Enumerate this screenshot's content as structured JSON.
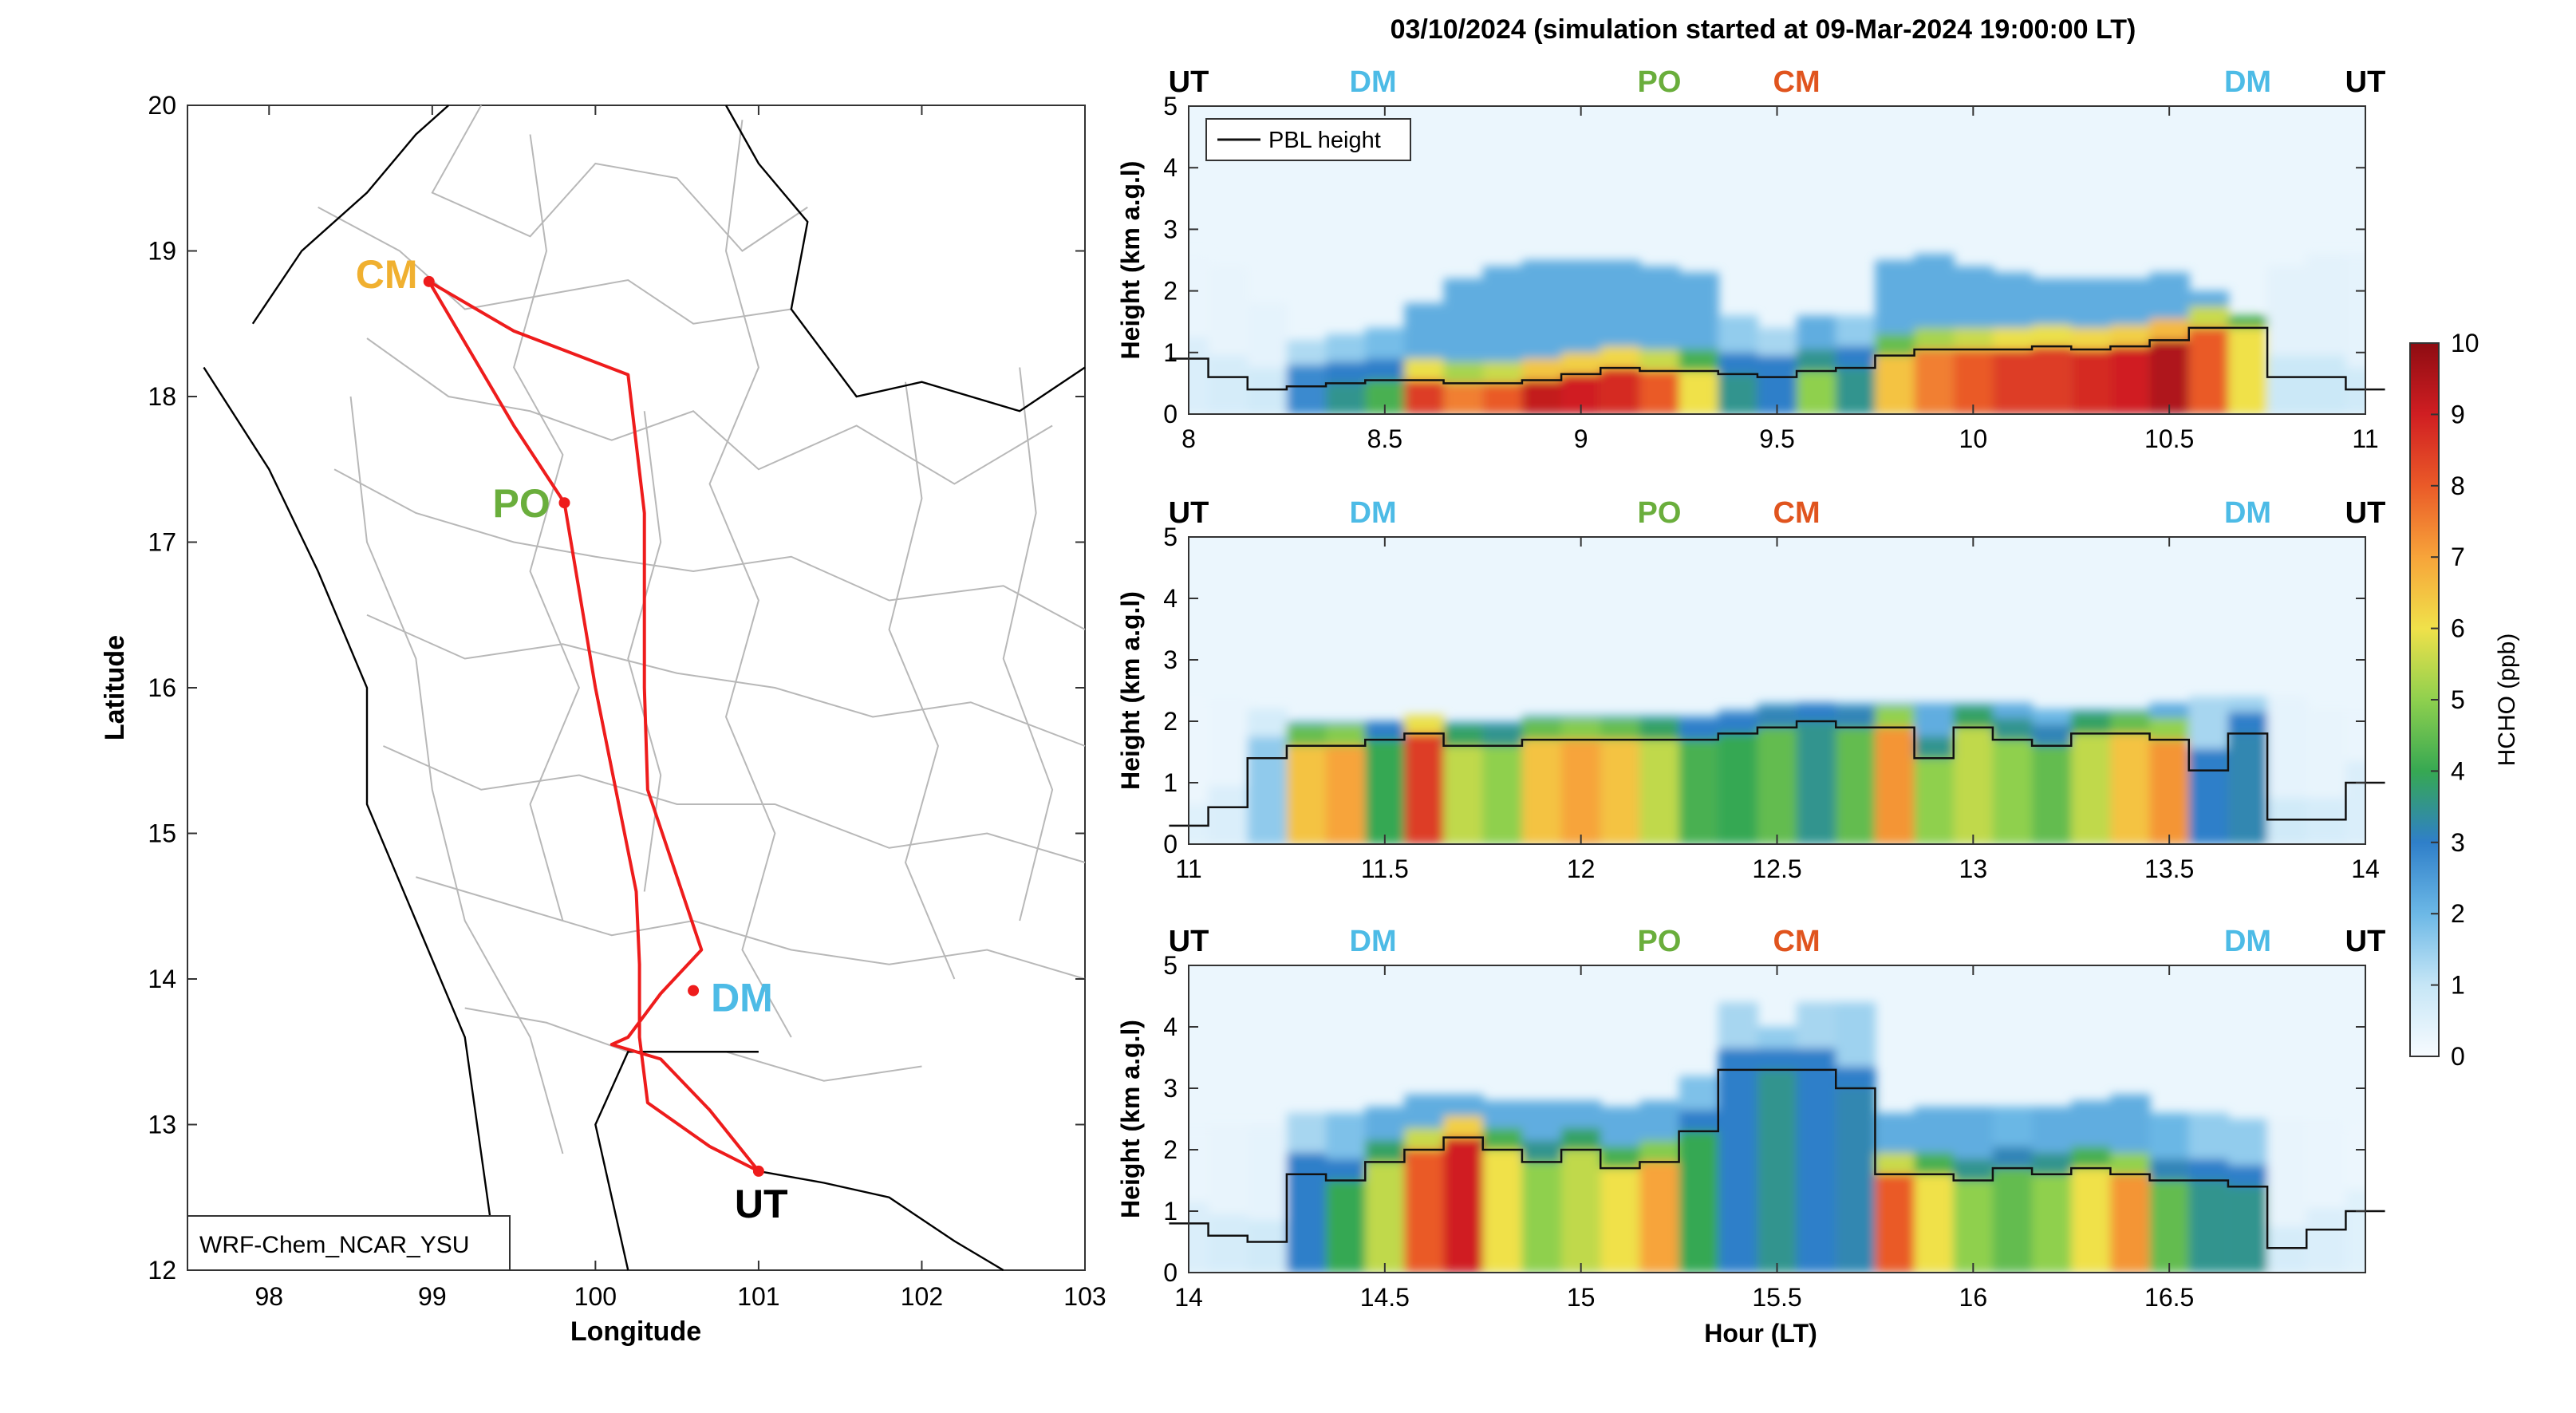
{
  "title": "03/10/2024 (simulation started at 09-Mar-2024 19:00:00 LT)",
  "map": {
    "xlabel": "Longitude",
    "ylabel": "Latitude",
    "xticks": [
      98,
      99,
      100,
      101,
      102,
      103
    ],
    "yticks": [
      12,
      13,
      14,
      15,
      16,
      17,
      18,
      19,
      20
    ],
    "xlim": [
      97.5,
      103
    ],
    "ylim": [
      12,
      20
    ],
    "model_label": "WRF-Chem_NCAR_YSU",
    "sites": [
      {
        "name": "CM",
        "lon": 98.98,
        "lat": 18.79,
        "color": "#F0B030"
      },
      {
        "name": "PO",
        "lon": 99.81,
        "lat": 17.27,
        "color": "#6AAE3C"
      },
      {
        "name": "DM",
        "lon": 100.6,
        "lat": 13.92,
        "color": "#4DBBE6"
      },
      {
        "name": "UT",
        "lon": 101.0,
        "lat": 12.68,
        "color": "#000000"
      }
    ],
    "flight_track": [
      [
        101.0,
        12.68
      ],
      [
        100.7,
        12.85
      ],
      [
        100.32,
        13.15
      ],
      [
        100.27,
        13.6
      ],
      [
        100.27,
        14.1
      ],
      [
        100.25,
        14.6
      ],
      [
        100.0,
        16.0
      ],
      [
        99.81,
        17.27
      ],
      [
        99.5,
        17.8
      ],
      [
        98.98,
        18.79
      ],
      [
        99.5,
        18.45
      ],
      [
        100.2,
        18.15
      ],
      [
        100.3,
        17.2
      ],
      [
        100.3,
        16.0
      ],
      [
        100.32,
        15.3
      ],
      [
        100.65,
        14.2
      ],
      [
        100.4,
        13.9
      ],
      [
        100.2,
        13.6
      ],
      [
        100.1,
        13.55
      ],
      [
        100.4,
        13.45
      ],
      [
        100.7,
        13.1
      ],
      [
        101.0,
        12.68
      ]
    ]
  },
  "colorbar": {
    "label": "HCHO (ppb)",
    "ticks": [
      0,
      1,
      2,
      3,
      4,
      5,
      6,
      7,
      8,
      9,
      10
    ]
  },
  "panel_common": {
    "ylabel": "Height (km a.g.l)",
    "yticks": [
      0,
      1,
      2,
      3,
      4,
      5
    ],
    "ylim": [
      0,
      5
    ],
    "legend": "PBL height",
    "site_labels": [
      {
        "name": "UT",
        "color": "#000000"
      },
      {
        "name": "DM",
        "color": "#4DBBE6"
      },
      {
        "name": "PO",
        "color": "#6AAE3C"
      },
      {
        "name": "CM",
        "color": "#E0541E"
      },
      {
        "name": "DM",
        "color": "#4DBBE6"
      },
      {
        "name": "UT",
        "color": "#000000"
      }
    ]
  },
  "xlabel_bottom": "Hour (LT)",
  "chart_data": [
    {
      "type": "heatmap",
      "xlim": [
        8,
        11
      ],
      "xticks": [
        8,
        8.5,
        9,
        9.5,
        10,
        10.5,
        11
      ],
      "xtick_labels": [
        "8",
        "8.5",
        "9",
        "9.5",
        "10",
        "10.5",
        "11"
      ],
      "site_x": [
        8,
        8.47,
        9.2,
        9.55,
        10.7,
        11
      ],
      "segments": [
        {
          "t": 8.0,
          "pbl": 0.9,
          "c": 0.6,
          "top": 2.6
        },
        {
          "t": 8.1,
          "pbl": 0.6,
          "c": 0.7,
          "top": 2.4
        },
        {
          "t": 8.2,
          "pbl": 0.4,
          "c": 0.8,
          "top": 1.8
        },
        {
          "t": 8.3,
          "pbl": 0.45,
          "c": 2.8,
          "top": 1.2
        },
        {
          "t": 8.4,
          "pbl": 0.5,
          "c": 3.5,
          "top": 1.3
        },
        {
          "t": 8.5,
          "pbl": 0.55,
          "c": 4.2,
          "top": 1.4
        },
        {
          "t": 8.6,
          "pbl": 0.55,
          "c": 8.5,
          "top": 1.8
        },
        {
          "t": 8.7,
          "pbl": 0.5,
          "c": 7.5,
          "top": 2.2
        },
        {
          "t": 8.8,
          "pbl": 0.5,
          "c": 8.0,
          "top": 2.4
        },
        {
          "t": 8.9,
          "pbl": 0.55,
          "c": 9.2,
          "top": 2.5
        },
        {
          "t": 9.0,
          "pbl": 0.65,
          "c": 9.0,
          "top": 2.5
        },
        {
          "t": 9.1,
          "pbl": 0.75,
          "c": 8.8,
          "top": 2.5
        },
        {
          "t": 9.2,
          "pbl": 0.7,
          "c": 8.0,
          "top": 2.4
        },
        {
          "t": 9.3,
          "pbl": 0.7,
          "c": 6.0,
          "top": 2.3
        },
        {
          "t": 9.4,
          "pbl": 0.65,
          "c": 3.5,
          "top": 1.6
        },
        {
          "t": 9.5,
          "pbl": 0.6,
          "c": 3.0,
          "top": 1.4
        },
        {
          "t": 9.6,
          "pbl": 0.7,
          "c": 5.0,
          "top": 1.6
        },
        {
          "t": 9.7,
          "pbl": 0.75,
          "c": 3.5,
          "top": 1.6
        },
        {
          "t": 9.8,
          "pbl": 0.95,
          "c": 6.5,
          "top": 2.5
        },
        {
          "t": 9.9,
          "pbl": 1.05,
          "c": 7.5,
          "top": 2.6
        },
        {
          "t": 10.0,
          "pbl": 1.05,
          "c": 8.0,
          "top": 2.4
        },
        {
          "t": 10.1,
          "pbl": 1.05,
          "c": 8.5,
          "top": 2.3
        },
        {
          "t": 10.2,
          "pbl": 1.1,
          "c": 8.5,
          "top": 2.2
        },
        {
          "t": 10.3,
          "pbl": 1.05,
          "c": 8.8,
          "top": 2.2
        },
        {
          "t": 10.4,
          "pbl": 1.1,
          "c": 9.0,
          "top": 2.2
        },
        {
          "t": 10.5,
          "pbl": 1.2,
          "c": 9.5,
          "top": 2.3
        },
        {
          "t": 10.6,
          "pbl": 1.4,
          "c": 8.0,
          "top": 2.0
        },
        {
          "t": 10.7,
          "pbl": 1.4,
          "c": 6.0,
          "top": 1.6
        },
        {
          "t": 10.8,
          "pbl": 0.6,
          "c": 0.9,
          "top": 2.4
        },
        {
          "t": 10.9,
          "pbl": 0.6,
          "c": 0.9,
          "top": 2.6
        },
        {
          "t": 11.0,
          "pbl": 0.4,
          "c": 0.8,
          "top": 2.6
        }
      ]
    },
    {
      "type": "heatmap",
      "xlim": [
        11,
        14
      ],
      "xticks": [
        11,
        11.5,
        12,
        12.5,
        13,
        13.5,
        14
      ],
      "xtick_labels": [
        "11",
        "11.5",
        "12",
        "12.5",
        "13",
        "13.5",
        "14"
      ],
      "site_x": [
        11,
        11.47,
        12.2,
        12.55,
        13.7,
        14
      ],
      "segments": [
        {
          "t": 11.0,
          "pbl": 0.3,
          "c": 0.5,
          "top": 2.4
        },
        {
          "t": 11.1,
          "pbl": 0.6,
          "c": 0.6,
          "top": 2.4
        },
        {
          "t": 11.2,
          "pbl": 1.4,
          "c": 1.6,
          "top": 2.2
        },
        {
          "t": 11.3,
          "pbl": 1.6,
          "c": 6.5,
          "top": 2.0
        },
        {
          "t": 11.4,
          "pbl": 1.6,
          "c": 7.0,
          "top": 2.0
        },
        {
          "t": 11.5,
          "pbl": 1.7,
          "c": 4.0,
          "top": 2.0
        },
        {
          "t": 11.6,
          "pbl": 1.8,
          "c": 8.5,
          "top": 2.1
        },
        {
          "t": 11.7,
          "pbl": 1.6,
          "c": 5.5,
          "top": 2.0
        },
        {
          "t": 11.8,
          "pbl": 1.6,
          "c": 5.0,
          "top": 2.0
        },
        {
          "t": 11.9,
          "pbl": 1.7,
          "c": 6.5,
          "top": 2.1
        },
        {
          "t": 12.0,
          "pbl": 1.7,
          "c": 7.0,
          "top": 2.1
        },
        {
          "t": 12.1,
          "pbl": 1.7,
          "c": 6.5,
          "top": 2.1
        },
        {
          "t": 12.2,
          "pbl": 1.7,
          "c": 5.5,
          "top": 2.1
        },
        {
          "t": 12.3,
          "pbl": 1.7,
          "c": 4.2,
          "top": 2.1
        },
        {
          "t": 12.4,
          "pbl": 1.8,
          "c": 4.0,
          "top": 2.2
        },
        {
          "t": 12.5,
          "pbl": 1.9,
          "c": 4.5,
          "top": 2.3
        },
        {
          "t": 12.6,
          "pbl": 2.0,
          "c": 3.5,
          "top": 2.3
        },
        {
          "t": 12.7,
          "pbl": 1.9,
          "c": 4.5,
          "top": 2.3
        },
        {
          "t": 12.8,
          "pbl": 1.9,
          "c": 7.2,
          "top": 2.3
        },
        {
          "t": 12.9,
          "pbl": 1.4,
          "c": 5.0,
          "top": 2.3
        },
        {
          "t": 13.0,
          "pbl": 1.9,
          "c": 5.5,
          "top": 2.3
        },
        {
          "t": 13.1,
          "pbl": 1.7,
          "c": 5.0,
          "top": 2.3
        },
        {
          "t": 13.2,
          "pbl": 1.6,
          "c": 4.5,
          "top": 2.2
        },
        {
          "t": 13.3,
          "pbl": 1.8,
          "c": 5.5,
          "top": 2.2
        },
        {
          "t": 13.4,
          "pbl": 1.8,
          "c": 6.5,
          "top": 2.2
        },
        {
          "t": 13.5,
          "pbl": 1.7,
          "c": 7.2,
          "top": 2.3
        },
        {
          "t": 13.6,
          "pbl": 1.2,
          "c": 3.0,
          "top": 2.4
        },
        {
          "t": 13.7,
          "pbl": 1.8,
          "c": 3.2,
          "top": 2.4
        },
        {
          "t": 13.8,
          "pbl": 0.4,
          "c": 0.8,
          "top": 2.4
        },
        {
          "t": 13.9,
          "pbl": 0.4,
          "c": 0.7,
          "top": 2.2
        },
        {
          "t": 14.0,
          "pbl": 1.0,
          "c": 0.6,
          "top": 2.2
        }
      ]
    },
    {
      "type": "heatmap",
      "xlim": [
        14,
        17
      ],
      "xticks": [
        14,
        14.5,
        15,
        15.5,
        16,
        16.5
      ],
      "xtick_labels": [
        "14",
        "14.5",
        "15",
        "15.5",
        "16",
        "16.5"
      ],
      "site_x": [
        14,
        14.47,
        15.2,
        15.55,
        16.7,
        17
      ],
      "segments": [
        {
          "t": 14.0,
          "pbl": 0.8,
          "c": 0.6,
          "top": 2.4
        },
        {
          "t": 14.1,
          "pbl": 0.6,
          "c": 0.7,
          "top": 2.4
        },
        {
          "t": 14.2,
          "pbl": 0.5,
          "c": 0.8,
          "top": 2.4
        },
        {
          "t": 14.3,
          "pbl": 1.6,
          "c": 3.0,
          "top": 2.6
        },
        {
          "t": 14.4,
          "pbl": 1.5,
          "c": 4.0,
          "top": 2.6
        },
        {
          "t": 14.5,
          "pbl": 1.8,
          "c": 5.5,
          "top": 2.7
        },
        {
          "t": 14.6,
          "pbl": 2.0,
          "c": 8.0,
          "top": 2.9
        },
        {
          "t": 14.7,
          "pbl": 2.2,
          "c": 9.0,
          "top": 2.9
        },
        {
          "t": 14.8,
          "pbl": 2.0,
          "c": 6.0,
          "top": 2.8
        },
        {
          "t": 14.9,
          "pbl": 1.8,
          "c": 5.0,
          "top": 2.8
        },
        {
          "t": 15.0,
          "pbl": 2.0,
          "c": 5.5,
          "top": 2.8
        },
        {
          "t": 15.1,
          "pbl": 1.7,
          "c": 6.0,
          "top": 2.7
        },
        {
          "t": 15.2,
          "pbl": 1.8,
          "c": 7.0,
          "top": 2.8
        },
        {
          "t": 15.3,
          "pbl": 2.3,
          "c": 4.0,
          "top": 3.2
        },
        {
          "t": 15.4,
          "pbl": 3.3,
          "c": 3.0,
          "top": 4.4
        },
        {
          "t": 15.5,
          "pbl": 3.3,
          "c": 3.5,
          "top": 4.0
        },
        {
          "t": 15.6,
          "pbl": 3.3,
          "c": 3.0,
          "top": 4.4
        },
        {
          "t": 15.7,
          "pbl": 3.0,
          "c": 3.2,
          "top": 4.4
        },
        {
          "t": 15.8,
          "pbl": 1.6,
          "c": 8.0,
          "top": 2.6
        },
        {
          "t": 15.9,
          "pbl": 1.6,
          "c": 6.0,
          "top": 2.7
        },
        {
          "t": 16.0,
          "pbl": 1.5,
          "c": 5.0,
          "top": 2.7
        },
        {
          "t": 16.1,
          "pbl": 1.7,
          "c": 4.5,
          "top": 2.7
        },
        {
          "t": 16.2,
          "pbl": 1.6,
          "c": 5.0,
          "top": 2.7
        },
        {
          "t": 16.3,
          "pbl": 1.7,
          "c": 6.0,
          "top": 2.8
        },
        {
          "t": 16.4,
          "pbl": 1.6,
          "c": 7.2,
          "top": 2.9
        },
        {
          "t": 16.5,
          "pbl": 1.5,
          "c": 4.5,
          "top": 2.6
        },
        {
          "t": 16.6,
          "pbl": 1.5,
          "c": 3.5,
          "top": 2.6
        },
        {
          "t": 16.7,
          "pbl": 1.4,
          "c": 3.5,
          "top": 2.5
        },
        {
          "t": 16.8,
          "pbl": 0.4,
          "c": 0.7,
          "top": 2.5
        },
        {
          "t": 16.9,
          "pbl": 0.7,
          "c": 0.6,
          "top": 2.5
        },
        {
          "t": 17.0,
          "pbl": 1.0,
          "c": 0.5,
          "top": 2.4
        }
      ]
    }
  ]
}
